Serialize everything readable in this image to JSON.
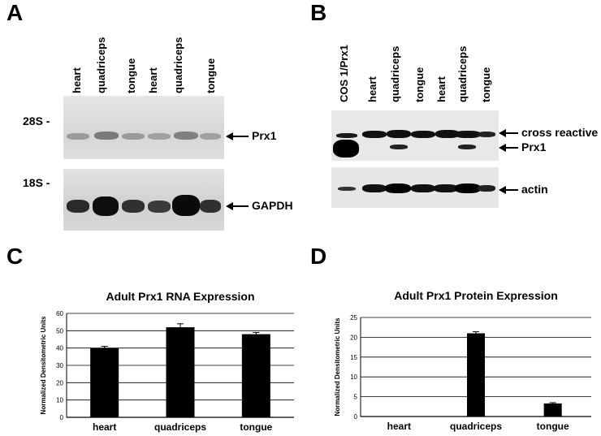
{
  "panels": {
    "a": {
      "letter": "A",
      "lanes": [
        "heart",
        "quadriceps",
        "tongue",
        "heart",
        "quadriceps",
        "tongue"
      ],
      "markers": {
        "upper": "28S -",
        "lower": "18S -"
      },
      "targets": {
        "upper": "Prx1",
        "lower": "GAPDH"
      }
    },
    "b": {
      "letter": "B",
      "lanes": [
        "COS 1/Prx1",
        "heart",
        "quadriceps",
        "tongue",
        "heart",
        "quadriceps",
        "tongue"
      ],
      "targets": {
        "cross": "cross reactive",
        "prx1": "Prx1",
        "actin": "actin"
      }
    },
    "c": {
      "letter": "C"
    },
    "d": {
      "letter": "D"
    }
  },
  "chart_data": [
    {
      "type": "bar",
      "title": "Adult Prx1 RNA Expression",
      "ylabel": "Normalized Densitometric Units",
      "categories": [
        "heart",
        "quadriceps",
        "tongue"
      ],
      "values": [
        40,
        52,
        48
      ],
      "errors": [
        1,
        2,
        1
      ],
      "ylim": [
        0,
        60
      ],
      "yticks": [
        "0",
        "10",
        "20",
        "30",
        "40",
        "50",
        "60"
      ],
      "grid": true,
      "bar_color": "#000000"
    },
    {
      "type": "bar",
      "title": "Adult Prx1 Protein Expression",
      "ylabel": "Normalized Densitometric Units",
      "categories": [
        "heart",
        "quadriceps",
        "tongue"
      ],
      "values": [
        0,
        21,
        3.3
      ],
      "errors": [
        0,
        0.4,
        0.2
      ],
      "ylim": [
        0,
        25
      ],
      "yticks": [
        "0",
        "5",
        "10",
        "15",
        "20",
        "25"
      ],
      "grid": true,
      "bar_color": "#000000"
    }
  ]
}
